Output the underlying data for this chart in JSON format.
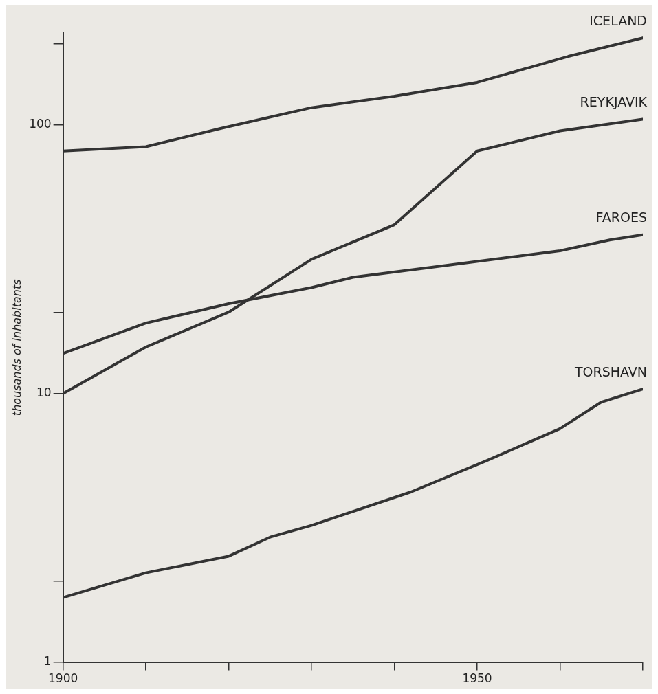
{
  "chart_data": {
    "type": "line",
    "ylabel": "thousands of inhabitants",
    "log": "y",
    "grid": false,
    "legend": false,
    "marker": "none",
    "line_style": "solid",
    "xlim": [
      1900,
      1970
    ],
    "xticks": [
      1900,
      {
        "value": 1910,
        "label": null
      },
      {
        "value": 1920,
        "label": null
      },
      {
        "value": 1930,
        "label": null
      },
      {
        "value": 1940,
        "label": null
      },
      1950,
      {
        "value": 1960,
        "label": null
      },
      {
        "value": 1970,
        "label": null
      }
    ],
    "ylim": [
      1,
      220
    ],
    "yticks": [
      1,
      {
        "value": 2,
        "label": null
      },
      10,
      {
        "value": 20,
        "label": null
      },
      100,
      {
        "value": 200,
        "label": null
      }
    ],
    "series": [
      {
        "name": "ICELAND",
        "color": "#333333",
        "x": [
          1900,
          1910,
          1919,
          1930,
          1940,
          1950,
          1961,
          1970
        ],
        "values": [
          80,
          83,
          97,
          116,
          128,
          144,
          180,
          211
        ]
      },
      {
        "name": "REYKJAVIK",
        "color": "#333333",
        "x": [
          1900,
          1910,
          1920,
          1930,
          1940,
          1950,
          1960,
          1970
        ],
        "values": [
          10,
          14.9,
          20.1,
          31.6,
          42.5,
          80,
          95,
          105
        ]
      },
      {
        "name": "FAROES",
        "color": "#333333",
        "x": [
          1900,
          1910,
          1920,
          1930,
          1935,
          1944,
          1960,
          1966,
          1970
        ],
        "values": [
          14.1,
          18.3,
          21.6,
          24.8,
          27.1,
          29.4,
          34,
          37.3,
          39
        ]
      },
      {
        "name": "TORSHAVN",
        "color": "#333333",
        "x": [
          1900,
          1910,
          1920,
          1925,
          1930,
          1942,
          1951,
          1960,
          1965,
          1970
        ],
        "values": [
          1.74,
          2.15,
          2.48,
          2.92,
          3.23,
          4.3,
          5.6,
          7.4,
          9.3,
          10.4
        ]
      }
    ]
  }
}
